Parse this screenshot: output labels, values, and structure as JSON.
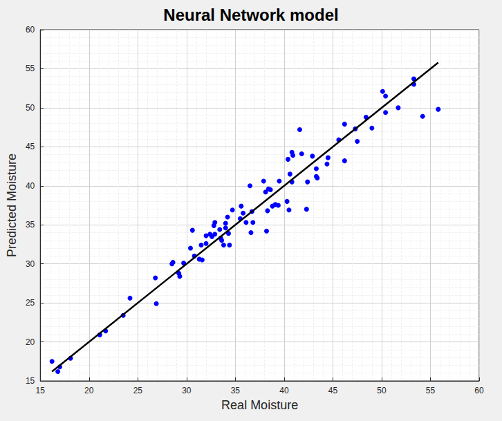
{
  "chart_data": {
    "type": "scatter",
    "title": "Neural Network model",
    "x_label": "Real Moisture",
    "y_label": "Predicted Moisture",
    "xlim": [
      15,
      60
    ],
    "ylim": [
      15,
      60
    ],
    "xticks": [
      15,
      20,
      25,
      30,
      35,
      40,
      45,
      50,
      55,
      60
    ],
    "yticks": [
      15,
      20,
      25,
      30,
      35,
      40,
      45,
      50,
      55,
      60
    ],
    "grid": true,
    "series": [
      {
        "type": "scatter",
        "color": "#0000ff",
        "marker": "circle",
        "x": [
          16.2,
          16.8,
          17.0,
          18.1,
          21.1,
          21.7,
          23.5,
          24.2,
          26.8,
          26.9,
          28.5,
          28.6,
          29.2,
          29.3,
          29.7,
          30.4,
          30.6,
          30.8,
          31.3,
          31.5,
          31.6,
          32.0,
          32.0,
          32.4,
          32.6,
          32.8,
          32.9,
          32.9,
          33.4,
          33.5,
          33.6,
          33.8,
          34.0,
          34.0,
          34.2,
          34.3,
          34.4,
          34.7,
          35.5,
          35.6,
          35.8,
          36.1,
          36.5,
          36.6,
          36.7,
          36.8,
          37.9,
          38.1,
          38.2,
          38.3,
          38.4,
          38.6,
          38.8,
          39.1,
          39.4,
          39.5,
          40.3,
          40.4,
          40.5,
          40.6,
          40.8,
          40.8,
          40.9,
          41.6,
          41.8,
          42.3,
          42.4,
          42.9,
          43.3,
          43.3,
          43.4,
          44.4,
          44.5,
          45.6,
          46.2,
          46.2,
          47.3,
          47.5,
          48.4,
          49.0,
          50.1,
          50.4,
          50.4,
          51.7,
          53.3,
          53.3,
          54.2,
          55.8
        ],
        "values": [
          17.5,
          16.2,
          16.8,
          17.9,
          20.9,
          21.4,
          23.4,
          25.6,
          28.2,
          24.9,
          30.0,
          30.2,
          28.8,
          28.4,
          30.1,
          32.0,
          34.3,
          31.0,
          30.6,
          32.4,
          30.5,
          32.6,
          33.6,
          33.8,
          33.5,
          34.9,
          35.3,
          33.8,
          34.4,
          33.3,
          33.0,
          32.4,
          34.6,
          35.2,
          36.0,
          33.9,
          32.4,
          36.9,
          35.8,
          37.4,
          36.5,
          35.3,
          40.0,
          34.0,
          36.7,
          35.3,
          40.6,
          39.2,
          34.2,
          36.8,
          39.6,
          39.5,
          37.4,
          37.6,
          37.5,
          40.6,
          38.0,
          43.4,
          36.9,
          41.5,
          44.3,
          40.5,
          43.9,
          47.2,
          44.1,
          37.0,
          40.5,
          43.8,
          42.2,
          41.2,
          41.0,
          42.8,
          43.6,
          45.9,
          47.9,
          43.2,
          47.3,
          45.7,
          48.8,
          47.4,
          52.1,
          51.5,
          49.4,
          50.0,
          53.7,
          53.0,
          48.9,
          49.8
        ]
      },
      {
        "type": "line",
        "color": "#000000",
        "line_style": "solid",
        "x": [
          16.2,
          55.8
        ],
        "values": [
          16.2,
          55.8
        ]
      }
    ]
  }
}
